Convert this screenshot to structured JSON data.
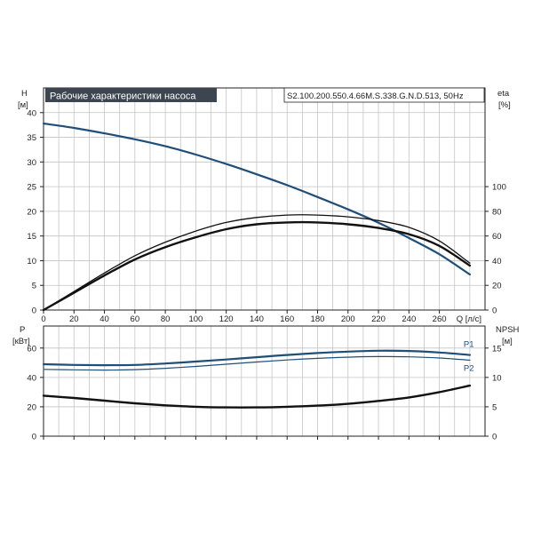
{
  "chart_data": [
    {
      "type": "line",
      "title": "Рабочие характеристики насоса",
      "model": "S2.100.200.550.4.66M.S.338.G.N.D.513, 50Hz",
      "xlabel": "Q [л/с]",
      "x_ticks": [
        "0",
        "20",
        "40",
        "60",
        "80",
        "100",
        "120",
        "140",
        "160",
        "180",
        "200",
        "220",
        "240",
        "260"
      ],
      "xlim": [
        0,
        290
      ],
      "ylabel_left": "H",
      "ylabel_left_unit": "[м]",
      "y_left_ticks": [
        "0",
        "5",
        "10",
        "15",
        "20",
        "25",
        "30",
        "35",
        "40"
      ],
      "ylim_left": [
        0,
        45
      ],
      "ylabel_right": "eta",
      "ylabel_right_unit": "[%]",
      "y_right_ticks": [
        "0",
        "20",
        "40",
        "60",
        "80",
        "100"
      ],
      "ylim_right": [
        0,
        180
      ],
      "grid": true,
      "series": [
        {
          "axis": "left",
          "color": "#1f4e79",
          "width": 2.2,
          "x": [
            0,
            20,
            40,
            60,
            80,
            100,
            120,
            140,
            160,
            180,
            200,
            220,
            240,
            260,
            280
          ],
          "y": [
            37.8,
            36.9,
            35.8,
            34.6,
            33.2,
            31.5,
            29.6,
            27.5,
            25.3,
            22.9,
            20.4,
            17.7,
            14.6,
            11.3,
            7.2
          ]
        },
        {
          "axis": "right",
          "color": "#111111",
          "width": 1.3,
          "x": [
            0,
            20,
            40,
            60,
            80,
            100,
            120,
            140,
            160,
            180,
            200,
            220,
            240,
            260,
            280
          ],
          "y": [
            0,
            15,
            30,
            44,
            55,
            64,
            71,
            75,
            77,
            77,
            75.5,
            72.5,
            67,
            56,
            38
          ]
        },
        {
          "axis": "right",
          "color": "#111111",
          "width": 2.4,
          "x": [
            0,
            20,
            40,
            60,
            80,
            100,
            120,
            140,
            160,
            180,
            200,
            220,
            240,
            260,
            280
          ],
          "y": [
            0,
            14,
            28,
            41,
            51,
            59,
            65.5,
            69.5,
            71,
            71,
            69.5,
            66.5,
            61.5,
            52,
            36
          ]
        }
      ]
    },
    {
      "type": "line",
      "xlim": [
        0,
        290
      ],
      "ylabel_left": "P",
      "ylabel_left_unit": "[кВт]",
      "y_left_ticks": [
        "0",
        "20",
        "40",
        "60"
      ],
      "ylim_left": [
        0,
        75
      ],
      "ylabel_right": "NPSH",
      "ylabel_right_unit": "[м]",
      "y_right_ticks": [
        "0",
        "5",
        "10",
        "15"
      ],
      "ylim_right": [
        0,
        18.75
      ],
      "grid": true,
      "series": [
        {
          "name": "P1",
          "axis": "left",
          "color": "#1f4e79",
          "width": 2.2,
          "x": [
            0,
            20,
            40,
            60,
            80,
            100,
            120,
            140,
            160,
            180,
            200,
            220,
            240,
            260,
            280
          ],
          "y": [
            49,
            48.5,
            48.3,
            48.5,
            49.5,
            50.8,
            52.2,
            53.8,
            55.3,
            56.6,
            57.6,
            58.2,
            58,
            57,
            55.3
          ]
        },
        {
          "name": "P2",
          "axis": "left",
          "color": "#1f4e79",
          "width": 1.2,
          "x": [
            0,
            20,
            40,
            60,
            80,
            100,
            120,
            140,
            160,
            180,
            200,
            220,
            240,
            260,
            280
          ],
          "y": [
            45.5,
            45.2,
            45,
            45.3,
            46.2,
            47.5,
            49,
            50.5,
            51.9,
            53,
            53.8,
            54.2,
            54,
            53.2,
            51.8
          ]
        },
        {
          "axis": "right",
          "color": "#111111",
          "width": 2.4,
          "x": [
            0,
            20,
            40,
            60,
            80,
            100,
            120,
            140,
            160,
            180,
            200,
            220,
            240,
            260,
            280
          ],
          "y": [
            6.9,
            6.5,
            6.05,
            5.6,
            5.25,
            5.0,
            4.9,
            4.9,
            5.0,
            5.2,
            5.5,
            6.0,
            6.6,
            7.5,
            8.6
          ]
        }
      ]
    }
  ]
}
